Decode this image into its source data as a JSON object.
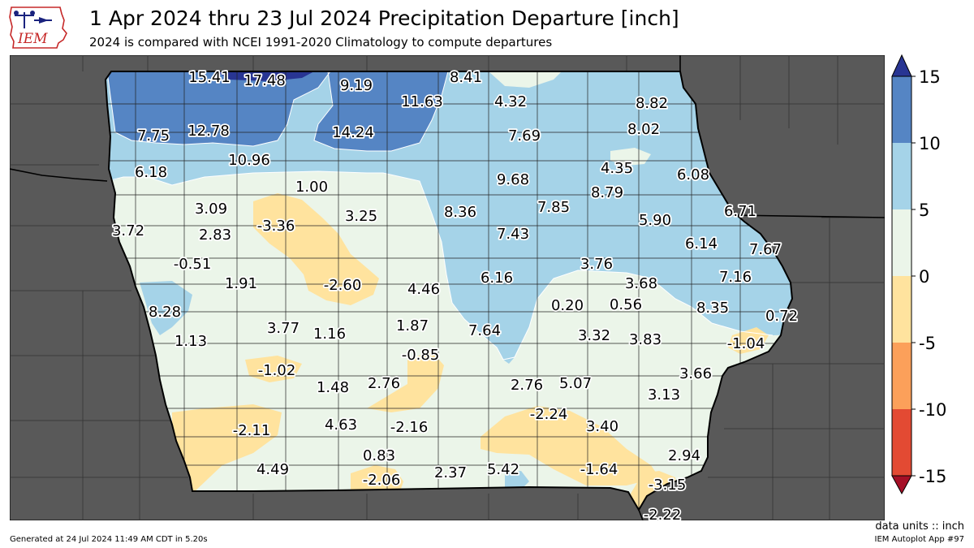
{
  "header": {
    "logo_text": "IEM",
    "title": "1 Apr 2024 thru 23 Jul 2024 Precipitation Departure [inch]",
    "subtitle": "2024 is compared with NCEI 1991-2020 Climatology to compute departures"
  },
  "colorbar": {
    "ticks": [
      "15",
      "10",
      "5",
      "0",
      "-5",
      "-10",
      "-15"
    ],
    "colors": [
      "#283593",
      "#5585c4",
      "#a5d3e8",
      "#ebf5e9",
      "#ffe39e",
      "#fca05a",
      "#e34a33",
      "#a50f26"
    ]
  },
  "map": {
    "background_color": "#595959",
    "labels": [
      {
        "text": "15.41"
      },
      {
        "text": "17.48"
      },
      {
        "text": "9.19"
      },
      {
        "text": "8.41"
      },
      {
        "text": "11.63"
      },
      {
        "text": "4.32"
      },
      {
        "text": "8.82"
      },
      {
        "text": "7.75"
      },
      {
        "text": "12.78"
      },
      {
        "text": "14.24"
      },
      {
        "text": "7.69"
      },
      {
        "text": "8.02"
      },
      {
        "text": "10.96"
      },
      {
        "text": "4.35"
      },
      {
        "text": "6.18"
      },
      {
        "text": "9.68"
      },
      {
        "text": "6.08"
      },
      {
        "text": "1.00"
      },
      {
        "text": "8.79"
      },
      {
        "text": "3.09"
      },
      {
        "text": "8.36"
      },
      {
        "text": "7.85"
      },
      {
        "text": "6.71"
      },
      {
        "text": "3.25"
      },
      {
        "text": "-3.36"
      },
      {
        "text": "5.90"
      },
      {
        "text": "3.72"
      },
      {
        "text": "2.83"
      },
      {
        "text": "7.43"
      },
      {
        "text": "6.14"
      },
      {
        "text": "7.67"
      },
      {
        "text": "-0.51"
      },
      {
        "text": "3.76"
      },
      {
        "text": "6.16"
      },
      {
        "text": "7.16"
      },
      {
        "text": "1.91"
      },
      {
        "text": "-2.60"
      },
      {
        "text": "4.46"
      },
      {
        "text": "3.68"
      },
      {
        "text": "8.28"
      },
      {
        "text": "0.20"
      },
      {
        "text": "0.56"
      },
      {
        "text": "8.35"
      },
      {
        "text": "0.72"
      },
      {
        "text": "3.77"
      },
      {
        "text": "1.87"
      },
      {
        "text": "1.13"
      },
      {
        "text": "1.16"
      },
      {
        "text": "7.64"
      },
      {
        "text": "3.32"
      },
      {
        "text": "3.83"
      },
      {
        "text": "-1.04"
      },
      {
        "text": "-0.85"
      },
      {
        "text": "-1.02"
      },
      {
        "text": "3.66"
      },
      {
        "text": "2.76"
      },
      {
        "text": "1.48"
      },
      {
        "text": "2.76"
      },
      {
        "text": "5.07"
      },
      {
        "text": "3.13"
      },
      {
        "text": "-2.24"
      },
      {
        "text": "-2.11"
      },
      {
        "text": "4.63"
      },
      {
        "text": "-2.16"
      },
      {
        "text": "3.40"
      },
      {
        "text": "0.83"
      },
      {
        "text": "2.94"
      },
      {
        "text": "4.49"
      },
      {
        "text": "2.37"
      },
      {
        "text": "5.42"
      },
      {
        "text": "-1.64"
      },
      {
        "text": "-2.06"
      },
      {
        "text": "-3.15"
      },
      {
        "text": "-2.22"
      }
    ]
  },
  "footer": {
    "units": "data units :: inch",
    "generated": "Generated at 24 Jul 2024 11:49 AM CDT in 5.20s",
    "app": "IEM Autoplot App #97"
  }
}
